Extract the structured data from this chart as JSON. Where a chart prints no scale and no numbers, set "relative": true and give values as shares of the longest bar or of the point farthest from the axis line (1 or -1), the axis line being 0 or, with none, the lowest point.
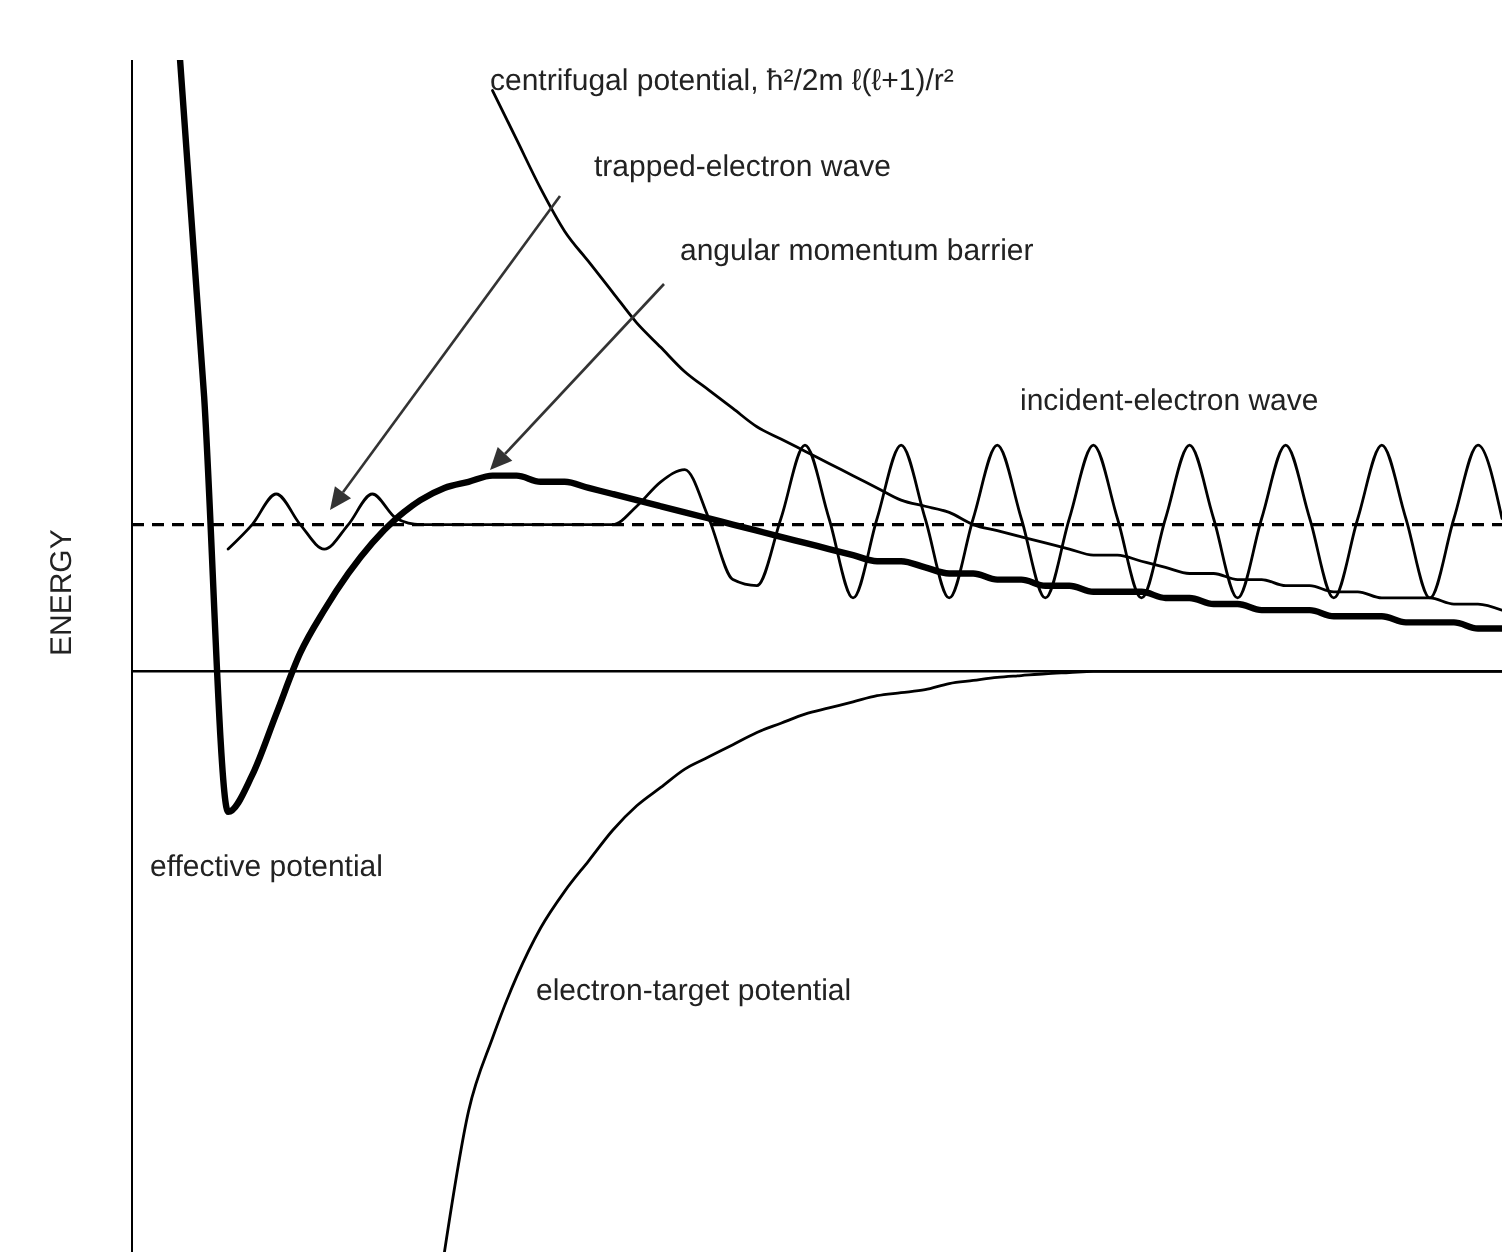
{
  "chart_data": {
    "type": "line",
    "relative": true,
    "ylabel": "ENERGY",
    "categories": [
      null,
      null,
      null,
      null,
      null,
      null,
      null,
      null,
      null,
      null,
      null,
      null,
      null,
      null,
      null,
      null,
      null,
      null,
      null,
      null,
      null,
      null,
      null,
      null,
      null,
      null,
      null,
      null,
      null,
      null,
      null,
      null,
      null,
      null,
      null,
      null,
      null,
      null,
      null,
      null,
      null,
      null,
      null,
      null,
      null,
      null,
      null,
      null,
      null,
      null,
      null,
      null,
      null,
      null,
      null,
      null,
      null,
      null
    ],
    "series": [
      {
        "name": "centrifugal potential, ħ²/2m ℓ(ℓ+1)/r²",
        "color": "#000000",
        "values": [
          null,
          null,
          null,
          null,
          null,
          null,
          null,
          null,
          null,
          null,
          null,
          null,
          null,
          null,
          null,
          0.95,
          0.87,
          0.79,
          0.72,
          0.67,
          0.62,
          0.57,
          0.53,
          0.49,
          0.46,
          0.43,
          0.4,
          0.38,
          0.36,
          0.34,
          0.32,
          0.3,
          0.28,
          0.27,
          0.26,
          0.24,
          0.23,
          0.22,
          0.21,
          0.2,
          0.19,
          0.19,
          0.18,
          0.17,
          0.16,
          0.16,
          0.15,
          0.15,
          0.14,
          0.14,
          0.13,
          0.13,
          0.12,
          0.12,
          0.12,
          0.11,
          0.11,
          0.1
        ]
      },
      {
        "name": "effective potential",
        "color": "#000000",
        "values": [
          null,
          null,
          1.0,
          0.45,
          -0.23,
          -0.17,
          -0.07,
          0.03,
          0.1,
          0.16,
          0.21,
          0.25,
          0.28,
          0.3,
          0.31,
          0.32,
          0.32,
          0.31,
          0.31,
          0.3,
          0.29,
          0.28,
          0.27,
          0.26,
          0.25,
          0.24,
          0.23,
          0.22,
          0.21,
          0.2,
          0.19,
          0.18,
          0.18,
          0.17,
          0.16,
          0.16,
          0.15,
          0.15,
          0.14,
          0.14,
          0.13,
          0.13,
          0.13,
          0.12,
          0.12,
          0.11,
          0.11,
          0.1,
          0.1,
          0.1,
          0.09,
          0.09,
          0.09,
          0.08,
          0.08,
          0.08,
          0.07,
          0.07
        ]
      },
      {
        "name": "electron-target potential",
        "color": "#000000",
        "values": [
          null,
          null,
          null,
          null,
          null,
          null,
          null,
          null,
          null,
          null,
          null,
          null,
          null,
          -0.95,
          -0.72,
          -0.6,
          -0.5,
          -0.42,
          -0.36,
          -0.31,
          -0.26,
          -0.22,
          -0.19,
          -0.16,
          -0.14,
          -0.12,
          -0.1,
          -0.085,
          -0.07,
          -0.06,
          -0.05,
          -0.04,
          -0.035,
          -0.03,
          -0.02,
          -0.015,
          -0.01,
          -0.007,
          -0.004,
          -0.002,
          0,
          0,
          0,
          0,
          0,
          0,
          0,
          0,
          0,
          0,
          0,
          0,
          0,
          0,
          0,
          0,
          0,
          0
        ]
      },
      {
        "name": "incident-electron wave",
        "color": "#000000",
        "values": [
          null,
          null,
          null,
          null,
          0.2,
          0.24,
          0.29,
          0.24,
          0.2,
          0.24,
          0.29,
          0.25,
          0.24,
          0.24,
          0.24,
          0.24,
          0.24,
          0.24,
          0.24,
          0.24,
          0.24,
          0.27,
          0.31,
          0.33,
          0.25,
          0.15,
          0.14,
          0.25,
          0.37,
          0.25,
          0.12,
          0.25,
          0.37,
          0.25,
          0.12,
          0.25,
          0.37,
          0.25,
          0.12,
          0.25,
          0.37,
          0.25,
          0.12,
          0.25,
          0.37,
          0.25,
          0.12,
          0.25,
          0.37,
          0.25,
          0.12,
          0.25,
          0.37,
          0.25,
          0.12,
          0.25,
          0.37,
          0.25
        ]
      }
    ],
    "ref_lines": [
      {
        "axis": "y",
        "value": 0.24,
        "line_style": "dashed",
        "color": "#000000"
      }
    ],
    "annotations": [
      "trapped-electron wave",
      "angular momentum barrier"
    ]
  }
}
